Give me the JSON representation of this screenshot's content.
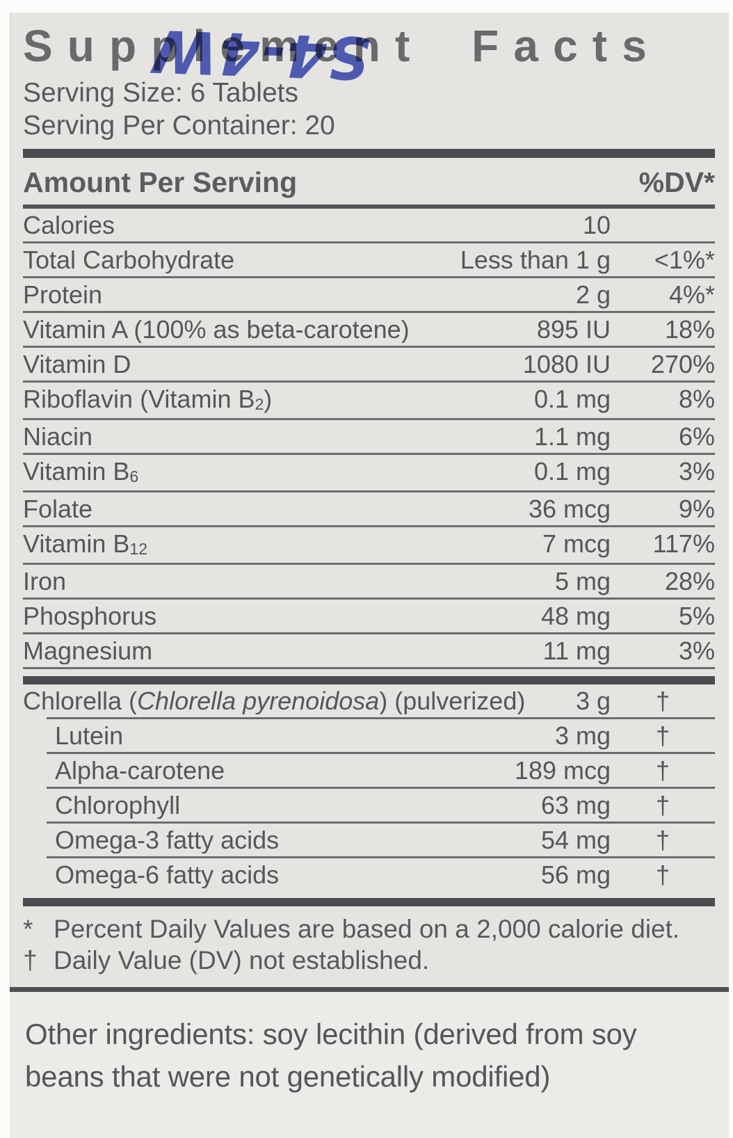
{
  "label": {
    "handwritten_mark": "S4-4W",
    "title": "Supplement Facts",
    "serving_size": "Serving Size: 6 Tablets",
    "servings_per_container": "Serving Per Container: 20",
    "header": {
      "amount": "Amount Per Serving",
      "dv": "%DV*"
    },
    "rows": [
      {
        "pre": "Calories",
        "amount": "10",
        "dv": ""
      },
      {
        "pre": "Total Carbohydrate",
        "amount": "Less than 1 g",
        "dv": "<1%*"
      },
      {
        "pre": "Protein",
        "amount": "2 g",
        "dv": "4%*"
      },
      {
        "pre": "Vitamin A (100% as beta-carotene)",
        "amount": "895 IU",
        "dv": "18%"
      },
      {
        "pre": "Vitamin D",
        "amount": "1080 IU",
        "dv": "270%"
      },
      {
        "pre": "Riboflavin (Vitamin B",
        "sub": "2",
        "post": ")",
        "amount": "0.1 mg",
        "dv": "8%"
      },
      {
        "pre": "Niacin",
        "amount": "1.1 mg",
        "dv": "6%"
      },
      {
        "pre": "Vitamin B",
        "sub": "6",
        "post": "",
        "amount": "0.1 mg",
        "dv": "3%"
      },
      {
        "pre": "Folate",
        "amount": "36 mcg",
        "dv": "9%"
      },
      {
        "pre": "Vitamin B",
        "sub": "12",
        "post": "",
        "amount": "7 mcg",
        "dv": "117%"
      },
      {
        "pre": "Iron",
        "amount": "5 mg",
        "dv": "28%"
      },
      {
        "pre": "Phosphorus",
        "amount": "48 mg",
        "dv": "5%"
      },
      {
        "pre": "Magnesium",
        "amount": "11 mg",
        "dv": "3%"
      }
    ],
    "botanicals": [
      {
        "pre": "Chlorella (",
        "italic": "Chlorella pyrenoidosa",
        "post": ") (pulverized)",
        "amount": "3 g",
        "dv": "†"
      },
      {
        "pre": "Lutein",
        "amount": "3 mg",
        "dv": "†"
      },
      {
        "pre": "Alpha-carotene",
        "amount": "189 mcg",
        "dv": "†"
      },
      {
        "pre": "Chlorophyll",
        "amount": "63 mg",
        "dv": "†"
      },
      {
        "pre": "Omega-3 fatty acids",
        "amount": "54 mg",
        "dv": "†"
      },
      {
        "pre": "Omega-6 fatty acids",
        "amount": "56 mg",
        "dv": "†"
      }
    ],
    "footnotes": [
      {
        "marker": "*",
        "text": "Percent Daily Values are based on a 2,000 calorie diet."
      },
      {
        "marker": "†",
        "text": "Daily Value (DV) not established."
      }
    ],
    "other_ingredients": "Other ingredients: soy lecithin (derived from soy beans that were not genetically modified)"
  },
  "colors": {
    "label_background": "#e6e4e1",
    "text": "#55565a",
    "bar": "#4b4c4f",
    "handwriting_blue": "#3d4fc1"
  }
}
